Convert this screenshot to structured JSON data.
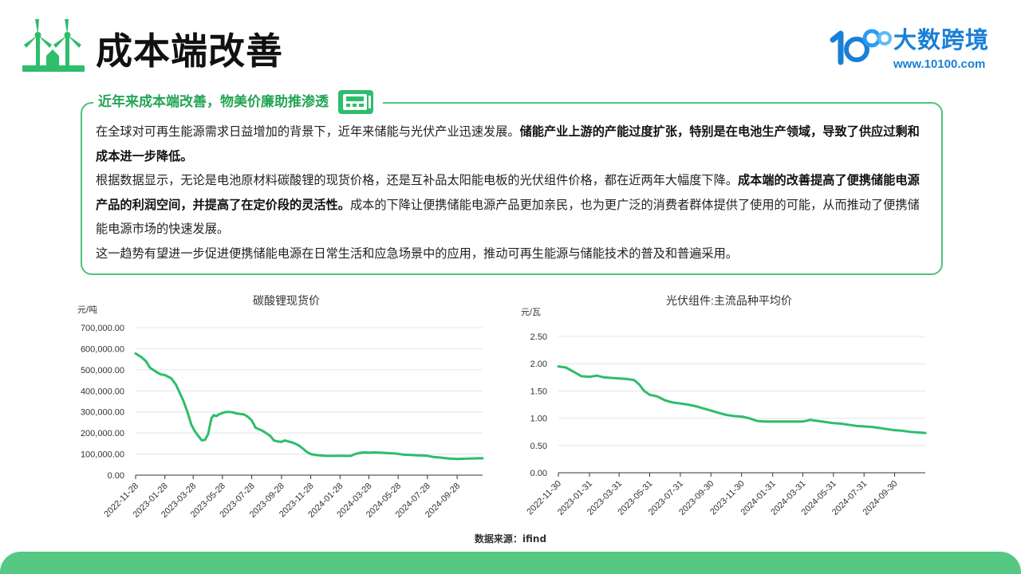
{
  "page": {
    "title": "成本端改善",
    "brand_name": "大数跨境",
    "brand_url": "www.10100.com",
    "colors": {
      "accent": "#22a553",
      "border": "#4cc47a",
      "footer": "#56c884",
      "line": "#2ebd6b",
      "brand": "#1a7fd6"
    },
    "icons": {
      "header_logo": "wind-turbine-icon",
      "brand_logo": "10100-logo-icon",
      "box_header": "cash-register-icon"
    }
  },
  "box": {
    "header": "近年来成本端改善，物美价廉助推渗透",
    "p1_a": "在全球对可再生能源需求日益增加的背景下，近年来储能与光伏产业迅速发展。",
    "p1_b": "储能产业上游的产能过度扩张，特别是在电池生产领域，导致了供应过剩和成本进一步降低。",
    "p2_a": "根据数据显示，无论是电池原材料碳酸锂的现货价格，还是互补品太阳能电板的光伏组件价格，都在近两年大幅度下降。",
    "p2_b": "成本端的改善提高了便携储能电源产品的利润空间，并提高了在定价段的灵活性。",
    "p2_c": "成本的下降让便携储能电源产品更加亲民，也为更广泛的消费者群体提供了使用的可能，从而推动了便携储能电源市场的快速发展。",
    "p3": "这一趋势有望进一步促进便携储能电源在日常生活和应急场景中的应用，推动可再生能源与储能技术的普及和普遍采用。"
  },
  "source": "数据来源：ifind",
  "chart_data": [
    {
      "type": "line",
      "title": "碳酸锂现货价",
      "unit": "元/吨",
      "ylim": [
        0,
        700000
      ],
      "yticks": [
        "0.00",
        "100,000.00",
        "200,000.00",
        "300,000.00",
        "400,000.00",
        "500,000.00",
        "600,000.00",
        "700,000.00"
      ],
      "xticks": [
        "2022-11-28",
        "2023-01-28",
        "2023-03-28",
        "2023-05-28",
        "2023-07-28",
        "2023-09-28",
        "2023-11-28",
        "2024-01-28",
        "2024-03-28",
        "2024-05-28",
        "2024-07-28",
        "2024-09-28"
      ],
      "x_end": "2024-11-20",
      "grid": true,
      "series": [
        {
          "x": [
            "2022-11-28",
            "2022-12-10",
            "2022-12-20",
            "2022-12-28",
            "2023-01-10",
            "2023-01-20",
            "2023-01-28",
            "2023-02-10",
            "2023-02-20",
            "2023-02-28",
            "2023-03-08",
            "2023-03-16",
            "2023-03-24",
            "2023-03-31",
            "2023-04-08",
            "2023-04-15",
            "2023-04-22",
            "2023-04-28",
            "2023-05-05",
            "2023-05-10",
            "2023-05-15",
            "2023-05-20",
            "2023-05-28",
            "2023-06-05",
            "2023-06-12",
            "2023-06-20",
            "2023-06-28",
            "2023-07-05",
            "2023-07-12",
            "2023-07-20",
            "2023-07-28",
            "2023-08-05",
            "2023-08-12",
            "2023-08-20",
            "2023-08-28",
            "2023-09-05",
            "2023-09-12",
            "2023-09-20",
            "2023-09-28",
            "2023-10-05",
            "2023-10-12",
            "2023-10-20",
            "2023-10-28",
            "2023-11-05",
            "2023-11-12",
            "2023-11-20",
            "2023-11-28",
            "2023-12-10",
            "2023-12-20",
            "2023-12-28",
            "2024-01-10",
            "2024-01-20",
            "2024-01-28",
            "2024-02-10",
            "2024-02-20",
            "2024-02-28",
            "2024-03-10",
            "2024-03-20",
            "2024-03-28",
            "2024-04-10",
            "2024-04-20",
            "2024-04-28",
            "2024-05-10",
            "2024-05-20",
            "2024-05-28",
            "2024-06-10",
            "2024-06-20",
            "2024-06-28",
            "2024-07-10",
            "2024-07-20",
            "2024-07-28",
            "2024-08-10",
            "2024-08-20",
            "2024-08-28",
            "2024-09-10",
            "2024-09-20",
            "2024-09-28",
            "2024-10-10",
            "2024-10-20",
            "2024-10-28",
            "2024-11-10",
            "2024-11-20"
          ],
          "y": [
            577500,
            560000,
            540000,
            510000,
            490000,
            478000,
            475000,
            460000,
            430000,
            390000,
            350000,
            300000,
            240000,
            210000,
            185000,
            165000,
            168000,
            195000,
            270000,
            285000,
            280000,
            288000,
            295000,
            300000,
            300000,
            297000,
            292000,
            290000,
            288000,
            277000,
            260000,
            225000,
            218000,
            210000,
            198000,
            185000,
            165000,
            160000,
            158000,
            165000,
            160000,
            155000,
            148000,
            138000,
            125000,
            110000,
            100000,
            95000,
            93000,
            92000,
            91000,
            91500,
            92000,
            91000,
            92000,
            100000,
            106000,
            108000,
            107000,
            108000,
            107000,
            106000,
            104000,
            103000,
            101000,
            97000,
            96000,
            95000,
            94000,
            93000,
            92000,
            86000,
            84000,
            82000,
            79000,
            78000,
            77000,
            78000,
            78500,
            79000,
            80000,
            80000
          ]
        }
      ]
    },
    {
      "type": "line",
      "title": "光伏组件:主流品种平均价",
      "unit": "元/瓦",
      "ylim": [
        0,
        2.5
      ],
      "yticks": [
        "0.00",
        "0.50",
        "1.00",
        "1.50",
        "2.00",
        "2.50"
      ],
      "xticks": [
        "2022-11-30",
        "2023-01-31",
        "2023-03-31",
        "2023-05-31",
        "2023-07-31",
        "2023-09-30",
        "2023-11-30",
        "2024-01-31",
        "2024-03-31",
        "2024-05-31",
        "2024-07-31",
        "2024-09-30"
      ],
      "x_end": "2024-11-30",
      "grid": true,
      "series": [
        {
          "x": [
            "2022-11-30",
            "2022-12-15",
            "2022-12-31",
            "2023-01-15",
            "2023-01-31",
            "2023-02-15",
            "2023-02-28",
            "2023-03-15",
            "2023-03-31",
            "2023-04-15",
            "2023-04-30",
            "2023-05-10",
            "2023-05-20",
            "2023-05-31",
            "2023-06-15",
            "2023-06-30",
            "2023-07-15",
            "2023-07-31",
            "2023-08-15",
            "2023-08-31",
            "2023-09-15",
            "2023-09-30",
            "2023-10-15",
            "2023-10-31",
            "2023-11-15",
            "2023-11-30",
            "2023-12-15",
            "2023-12-31",
            "2024-01-15",
            "2024-01-31",
            "2024-02-15",
            "2024-02-29",
            "2024-03-15",
            "2024-03-31",
            "2024-04-15",
            "2024-04-30",
            "2024-05-15",
            "2024-05-31",
            "2024-06-15",
            "2024-06-30",
            "2024-07-15",
            "2024-07-31",
            "2024-08-15",
            "2024-08-31",
            "2024-09-15",
            "2024-09-30",
            "2024-10-15",
            "2024-10-31",
            "2024-11-15",
            "2024-11-30"
          ],
          "y": [
            1.95,
            1.93,
            1.85,
            1.77,
            1.76,
            1.78,
            1.75,
            1.74,
            1.73,
            1.72,
            1.7,
            1.62,
            1.5,
            1.43,
            1.4,
            1.33,
            1.29,
            1.27,
            1.25,
            1.22,
            1.18,
            1.14,
            1.1,
            1.06,
            1.04,
            1.03,
            1.0,
            0.95,
            0.94,
            0.94,
            0.94,
            0.94,
            0.94,
            0.94,
            0.97,
            0.95,
            0.93,
            0.91,
            0.9,
            0.88,
            0.86,
            0.85,
            0.84,
            0.82,
            0.8,
            0.78,
            0.77,
            0.75,
            0.74,
            0.73
          ]
        }
      ]
    }
  ]
}
